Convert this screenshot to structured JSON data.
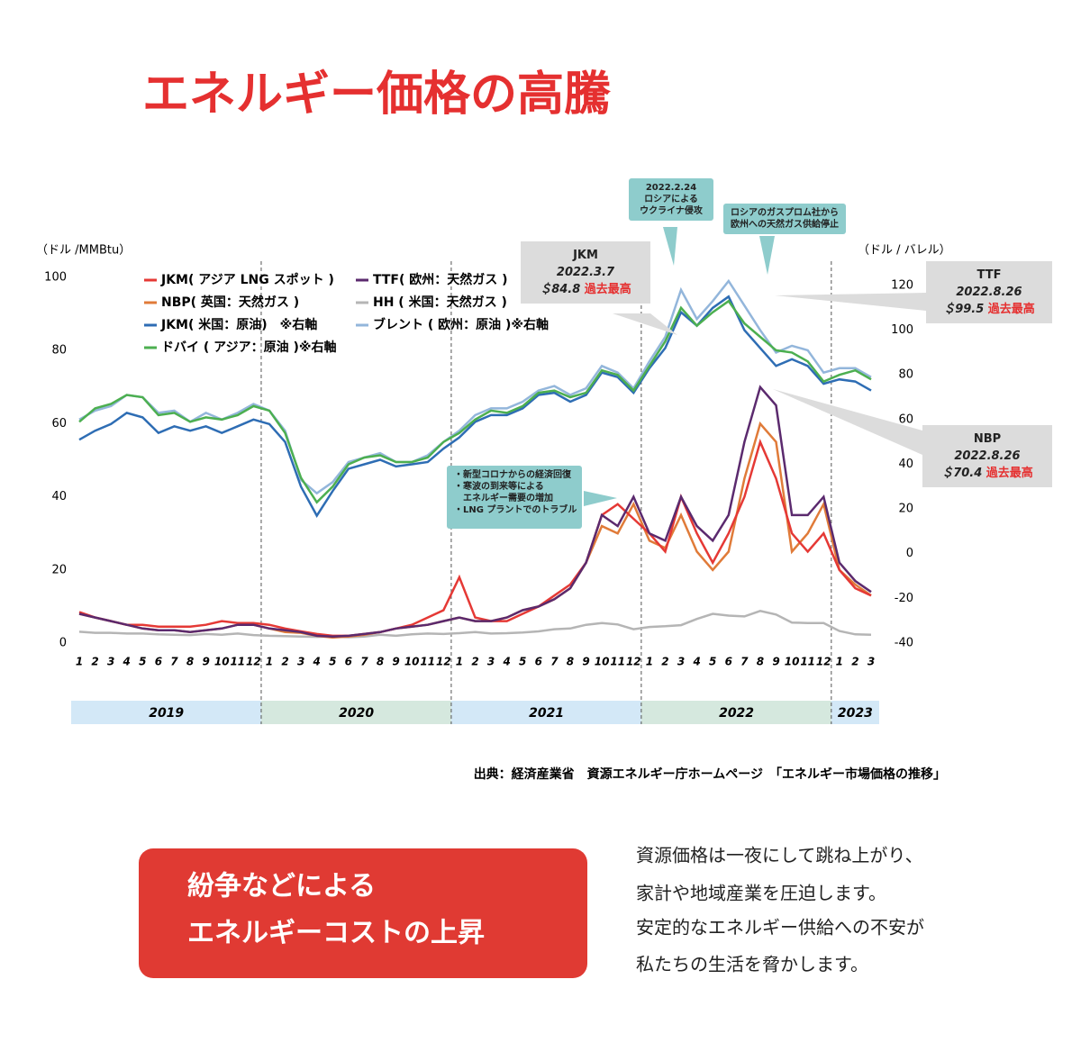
{
  "header": {
    "title": "エネルギー価格の高騰"
  },
  "chart_data": {
    "type": "line",
    "ylabel": "（ドル /MMBtu）",
    "y2label": "（ドル / バレル）",
    "categories": [
      "1",
      "2",
      "3",
      "4",
      "5",
      "6",
      "7",
      "8",
      "9",
      "10",
      "11",
      "12",
      "1",
      "2",
      "3",
      "4",
      "5",
      "6",
      "7",
      "8",
      "9",
      "10",
      "11",
      "12",
      "1",
      "2",
      "3",
      "4",
      "5",
      "6",
      "7",
      "8",
      "9",
      "10",
      "11",
      "12",
      "1",
      "2",
      "3",
      "4",
      "5",
      "6",
      "7",
      "8",
      "9",
      "10",
      "11",
      "12",
      "1",
      "2",
      "3"
    ],
    "years": [
      "2019",
      "2020",
      "2021",
      "2022",
      "2023"
    ],
    "ylim": [
      0,
      100
    ],
    "yticks": [
      0,
      20,
      40,
      60,
      80,
      100
    ],
    "y2lim": [
      -40,
      123.6
    ],
    "y2ticks": [
      -40,
      -20,
      0,
      20,
      40,
      60,
      80,
      100,
      120
    ],
    "series": [
      {
        "name": "JKM( アジア LNG スポット )",
        "color": "#e53935",
        "values": [
          8.5,
          7,
          6,
          5,
          5,
          4.5,
          4.5,
          4.5,
          5,
          6,
          5.5,
          5.5,
          5,
          4,
          3.2,
          2.5,
          2,
          2,
          2.5,
          3,
          4,
          5,
          7,
          9,
          18,
          7,
          6,
          6,
          8,
          10,
          13,
          16,
          22,
          35,
          38,
          34,
          30,
          25,
          40,
          30,
          22,
          30,
          40,
          55,
          45,
          30,
          25,
          30,
          20,
          15,
          13
        ]
      },
      {
        "name": "TTF( 欧州：天然ガス )",
        "color": "#5b2a6e",
        "values": [
          8,
          7,
          6,
          5,
          4,
          3.5,
          3.5,
          3,
          3.5,
          4,
          5,
          5,
          4,
          3.5,
          3,
          2,
          1.8,
          2,
          2.5,
          3,
          4,
          4.5,
          5,
          6,
          7,
          6,
          6,
          7,
          9,
          10,
          12,
          15,
          22,
          35,
          32,
          40,
          30,
          28,
          40,
          32,
          28,
          35,
          55,
          70,
          65,
          35,
          35,
          40,
          22,
          17,
          14
        ]
      },
      {
        "name": "NBP( 英国：天然ガス )",
        "color": "#e07b39",
        "values": [
          8,
          7,
          6,
          5,
          4,
          3.5,
          3.5,
          3,
          3.5,
          4,
          5,
          5,
          4,
          3,
          2.8,
          2,
          1.5,
          1.8,
          2.3,
          3,
          4,
          4.5,
          5,
          6,
          7,
          6,
          6,
          7,
          9,
          10,
          12,
          15,
          22,
          32,
          30,
          38,
          28,
          26,
          35,
          25,
          20,
          25,
          45,
          60,
          55,
          25,
          30,
          38,
          20,
          16,
          13
        ]
      },
      {
        "name": "HH ( 米国：天然ガス )",
        "color": "#b5b5b5",
        "values": [
          3.1,
          2.8,
          2.8,
          2.6,
          2.6,
          2.4,
          2.3,
          2.2,
          2.5,
          2.3,
          2.6,
          2.2,
          2,
          1.9,
          1.8,
          1.7,
          1.8,
          1.6,
          1.8,
          2.3,
          2,
          2.4,
          2.6,
          2.5,
          2.7,
          3,
          2.6,
          2.7,
          2.9,
          3.2,
          3.8,
          4,
          5,
          5.5,
          5.1,
          3.8,
          4.4,
          4.6,
          4.9,
          6.6,
          8,
          7.5,
          7.3,
          8.8,
          7.8,
          5.6,
          5.5,
          5.5,
          3.3,
          2.4,
          2.3
        ]
      },
      {
        "name": "JKM( 米国：原油)　※右軸",
        "color": "#2e6db4",
        "axis": "y2",
        "values": [
          51,
          55,
          58,
          63,
          61,
          54,
          57,
          55,
          57,
          54,
          57,
          60,
          58,
          50,
          30,
          17,
          28,
          38,
          40,
          42,
          39,
          40,
          41,
          47,
          52,
          59,
          62,
          62,
          65,
          71,
          72,
          68,
          71,
          81,
          79,
          72,
          83,
          92,
          108,
          102,
          110,
          115,
          100,
          92,
          84,
          87,
          84,
          76,
          78,
          77,
          73
        ]
      },
      {
        "name": "ブレント ( 欧州：原油 )※右軸",
        "color": "#93b6db",
        "axis": "y2",
        "values": [
          60,
          64,
          66,
          71,
          70,
          63,
          64,
          59,
          63,
          60,
          63,
          67,
          64,
          55,
          33,
          27,
          32,
          41,
          43,
          45,
          41,
          41,
          44,
          50,
          55,
          62,
          65,
          65,
          68,
          73,
          75,
          71,
          74,
          84,
          81,
          74,
          86,
          97,
          118,
          105,
          113,
          122,
          111,
          100,
          90,
          93,
          91,
          81,
          83,
          83,
          79
        ]
      },
      {
        "name": "ドバイ ( アジア：原油 )※右軸",
        "color": "#4caf50",
        "axis": "y2",
        "values": [
          59,
          65,
          67,
          71,
          70,
          62,
          63,
          59,
          61,
          60,
          62,
          66,
          64,
          54,
          34,
          23,
          30,
          40,
          43,
          44,
          41,
          41,
          43,
          50,
          54,
          60,
          64,
          63,
          66,
          72,
          73,
          70,
          72,
          82,
          80,
          73,
          84,
          95,
          110,
          102,
          108,
          113,
          103,
          97,
          91,
          90,
          86,
          77,
          80,
          82,
          78
        ]
      }
    ],
    "annotations": [
      [
        "2022.2.24",
        "ロシアによる",
        "ウクライナ侵攻"
      ],
      [
        "ロシアのガスプロム社から",
        "欧州への天然ガス供給停止"
      ],
      [
        "・新型コロナからの経済回復",
        "・寒波の到来等による",
        "　エネルギー需要の増加",
        "・LNG プラントでのトラブル"
      ],
      [
        "JKM",
        "2022.3.7",
        "＄84.8",
        "過去最高"
      ],
      [
        "TTF",
        "2022.8.26",
        "＄99.5",
        "過去最高"
      ],
      [
        "NBP",
        "2022.8.26",
        "＄70.4",
        "過去最高"
      ]
    ],
    "source": "出典：経済産業省　資源エネルギー庁ホームページ　「エネルギー市場価格の推移」"
  },
  "callout": [
    "紛争などによる",
    "エネルギーコストの上昇"
  ],
  "body": [
    "資源価格は一夜にして跳ね上がり、",
    "家計や地域産業を圧迫します。",
    "安定的なエネルギー供給への不安が",
    "私たちの生活を脅かします。"
  ]
}
